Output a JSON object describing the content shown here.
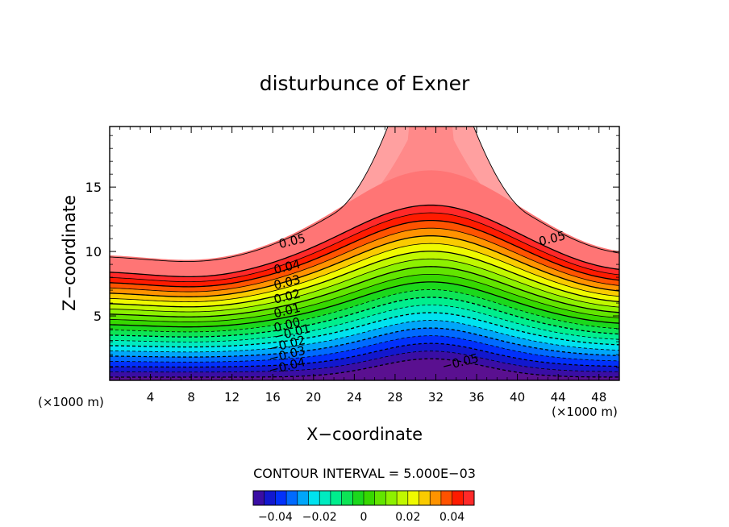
{
  "chart_data": {
    "type": "contour",
    "title": "disturbunce of Exner",
    "xlabel": "X−coordinate",
    "ylabel": "Z−coordinate",
    "x_unit_left": "(×1000 m)",
    "x_unit_right": "(×1000 m)",
    "xlim": [
      0,
      50
    ],
    "ylim": [
      0,
      19.7
    ],
    "x_ticks": [
      4,
      8,
      12,
      16,
      20,
      24,
      28,
      32,
      36,
      40,
      44,
      48
    ],
    "y_ticks": [
      5,
      10,
      15
    ],
    "contour_interval_text": "CONTOUR INTERVAL = 5.000E−03",
    "contour_interval": 0.005,
    "level_range": [
      -0.05,
      0.055
    ],
    "terrain": {
      "type": "bell-shaped hill",
      "center_x": 31.5,
      "height": 1.5,
      "base_height": 0.0
    },
    "base_level_curve": {
      "flat_height": 8.5,
      "hill_center_x": 31.5,
      "hill_peak_height": 13.6
    },
    "upper_region": {
      "note": "neck of >=0.05 contour near x=31.5",
      "neck_x_range": [
        28,
        35
      ]
    },
    "contour_labels": [
      {
        "text": "0.05",
        "x": 18,
        "z": 10.5
      },
      {
        "text": "0.04",
        "x": 17.5,
        "z": 8.5
      },
      {
        "text": "0.03",
        "x": 17.5,
        "z": 7.3
      },
      {
        "text": "0.02",
        "x": 17.5,
        "z": 6.2
      },
      {
        "text": "0.01",
        "x": 17.5,
        "z": 5.1
      },
      {
        "text": "0.00",
        "x": 17.5,
        "z": 4.0
      },
      {
        "text": "−0.01",
        "x": 18,
        "z": 3.4
      },
      {
        "text": "−0.02",
        "x": 17.5,
        "z": 2.5
      },
      {
        "text": "−0.03",
        "x": 17.5,
        "z": 1.7
      },
      {
        "text": "−0.04",
        "x": 17.5,
        "z": 0.8
      },
      {
        "text": "0.05",
        "x": 43.5,
        "z": 10.7
      },
      {
        "text": "−0.05",
        "x": 34.5,
        "z": 1.1
      }
    ],
    "colorbar": {
      "ticks": [
        -0.04,
        -0.02,
        0,
        0.02,
        0.04
      ],
      "tick_labels": [
        "−0.04",
        "−0.02",
        "0",
        "0.02",
        "0.04"
      ],
      "range": [
        -0.05,
        0.05
      ]
    },
    "colormap": {
      "stops": [
        {
          "v": -0.05,
          "c": "#5a1090"
        },
        {
          "v": -0.045,
          "c": "#1a0cb8"
        },
        {
          "v": -0.037,
          "c": "#0033ff"
        },
        {
          "v": -0.03,
          "c": "#0088ff"
        },
        {
          "v": -0.022,
          "c": "#00e8ee"
        },
        {
          "v": -0.012,
          "c": "#00ee88"
        },
        {
          "v": 0.0,
          "c": "#22d200"
        },
        {
          "v": 0.012,
          "c": "#88f000"
        },
        {
          "v": 0.022,
          "c": "#eeff00"
        },
        {
          "v": 0.03,
          "c": "#ffb400"
        },
        {
          "v": 0.038,
          "c": "#ff4c00"
        },
        {
          "v": 0.045,
          "c": "#ff0000"
        },
        {
          "v": 0.052,
          "c": "#ff7272"
        },
        {
          "v": 0.06,
          "c": "#ffa0a0"
        }
      ]
    }
  }
}
